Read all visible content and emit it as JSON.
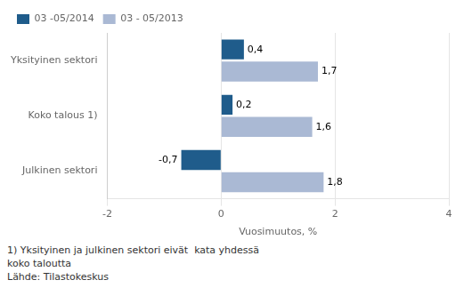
{
  "chart_data": {
    "type": "bar",
    "orientation": "horizontal",
    "categories": [
      "Julkinen sektori",
      "Koko talous 1)",
      "Yksityinen sektori"
    ],
    "series": [
      {
        "name": "03 -05/2014",
        "color": "#1F5C8B",
        "values": [
          -0.7,
          0.2,
          0.4
        ],
        "value_labels": [
          "-0,7",
          "0,2",
          "0,4"
        ]
      },
      {
        "name": "03 - 05/2013",
        "color": "#AAB9D4",
        "values": [
          1.8,
          1.6,
          1.7
        ],
        "value_labels": [
          "1,8",
          "1,6",
          "1,7"
        ]
      }
    ],
    "xlabel": "Vuosimuutos, %",
    "xlim": [
      -2,
      4
    ],
    "xticks": [
      -2,
      0,
      2,
      4
    ],
    "grid": true,
    "legend": "upper left",
    "data_labels": true,
    "annotations": [
      "1) Yksityinen ja julkinen sektori eivät  kata yhdessä",
      "koko taloutta",
      "Lähde: Tilastokeskus"
    ]
  }
}
